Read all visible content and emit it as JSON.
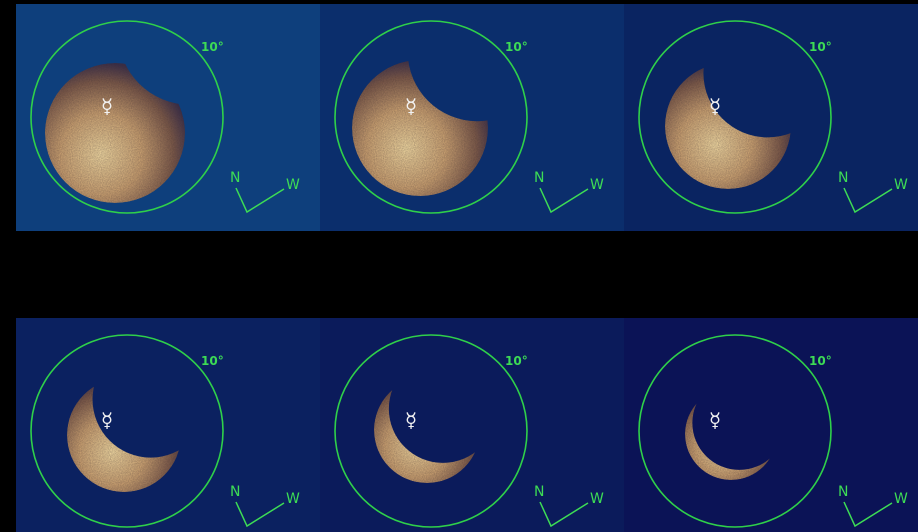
{
  "panels": [
    {
      "scale_label": "10°",
      "planet_symbol": "☿",
      "compass_n": "N",
      "compass_w": "W"
    },
    {
      "scale_label": "10°",
      "planet_symbol": "☿",
      "compass_n": "N",
      "compass_w": "W"
    },
    {
      "scale_label": "10°",
      "planet_symbol": "☿",
      "compass_n": "N",
      "compass_w": "W"
    },
    {
      "scale_label": "10°",
      "planet_symbol": "☿",
      "compass_n": "N",
      "compass_w": "W"
    },
    {
      "scale_label": "10°",
      "planet_symbol": "☿",
      "compass_n": "N",
      "compass_w": "W"
    },
    {
      "scale_label": "10°",
      "planet_symbol": "☿",
      "compass_n": "N",
      "compass_w": "W"
    }
  ]
}
